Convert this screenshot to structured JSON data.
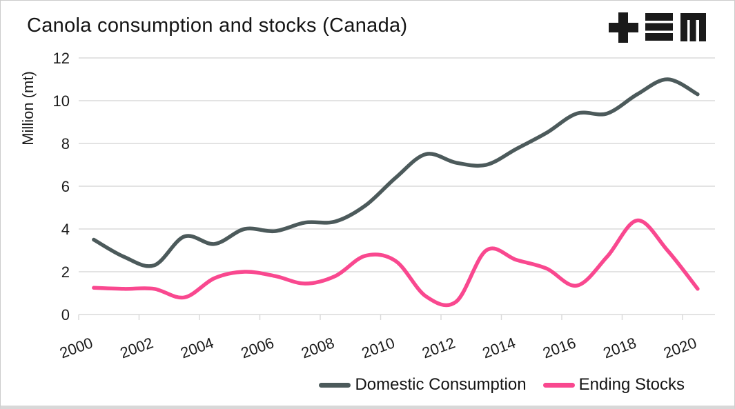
{
  "header": {
    "title": "Canola consumption and stocks (Canada)",
    "logo_name": "plus-bars-m-logo"
  },
  "chart_data": {
    "type": "line",
    "title": "Canola consumption and stocks (Canada)",
    "xlabel": "",
    "ylabel": "Million (mt)",
    "ylim": [
      0,
      12
    ],
    "y_ticks": [
      0,
      2,
      4,
      6,
      8,
      10,
      12
    ],
    "x_ticks": [
      2000,
      2002,
      2004,
      2006,
      2008,
      2010,
      2012,
      2014,
      2016,
      2018,
      2020
    ],
    "grid": "horizontal",
    "legend_position": "bottom-right",
    "line_smoothing": "catmull-rom",
    "x": [
      2000,
      2001,
      2002,
      2003,
      2004,
      2005,
      2006,
      2007,
      2008,
      2009,
      2010,
      2011,
      2012,
      2013,
      2014,
      2015,
      2016,
      2017,
      2018,
      2019,
      2020
    ],
    "series": [
      {
        "name": "Domestic Consumption",
        "color": "#4c5a5b",
        "values": [
          3.5,
          2.7,
          2.3,
          3.65,
          3.3,
          4.0,
          3.9,
          4.3,
          4.35,
          5.1,
          6.4,
          7.5,
          7.1,
          7.0,
          7.75,
          8.5,
          9.4,
          9.4,
          10.3,
          11.0,
          10.3
        ]
      },
      {
        "name": "Ending Stocks",
        "color": "#f9488f",
        "values": [
          1.25,
          1.2,
          1.2,
          0.8,
          1.7,
          2.0,
          1.8,
          1.45,
          1.8,
          2.75,
          2.5,
          0.85,
          0.6,
          3.0,
          2.55,
          2.15,
          1.35,
          2.7,
          4.4,
          3.0,
          1.2
        ]
      }
    ]
  },
  "style": {
    "grid_color": "#dadada",
    "text_color": "#1a1a1a",
    "logo_color": "#1a1a1a"
  }
}
